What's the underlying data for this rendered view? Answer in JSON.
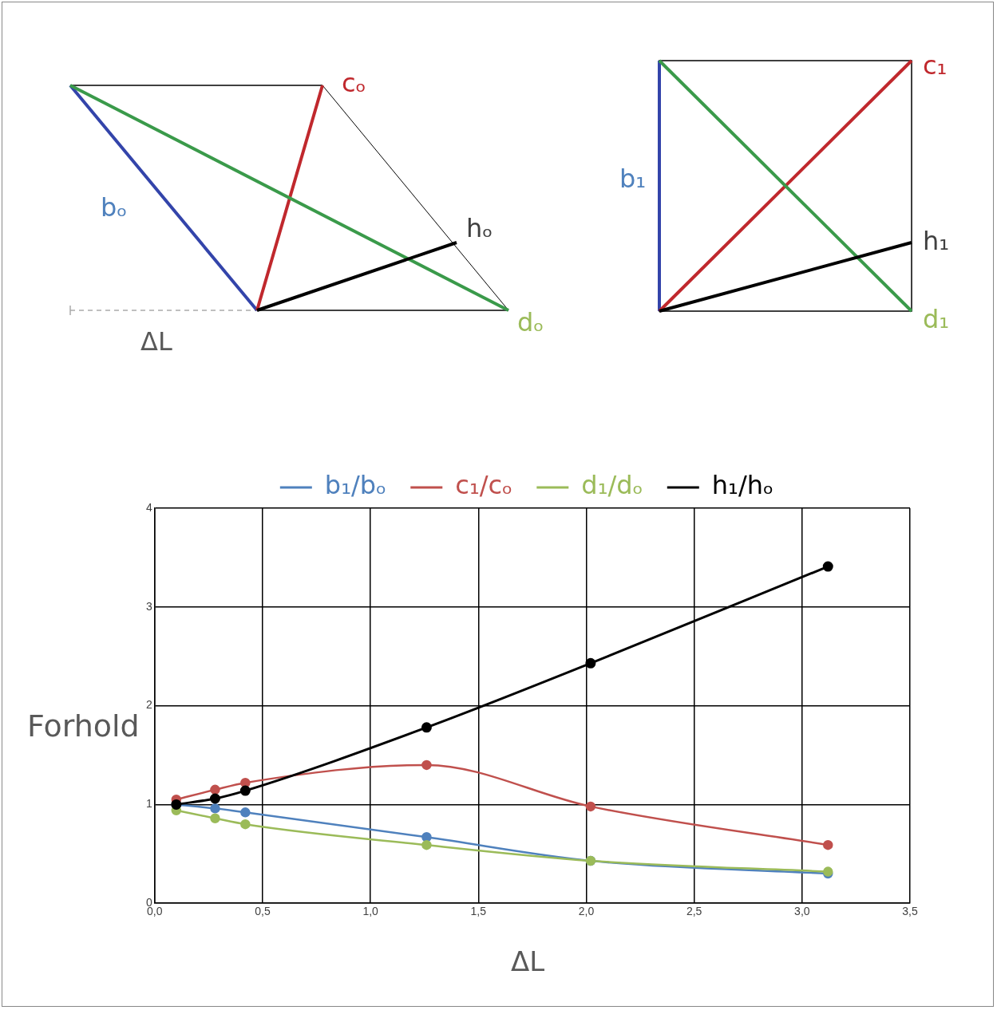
{
  "chart_data": {
    "type": "line",
    "xlabel": "ΔL",
    "ylabel": "Forhold",
    "x": [
      0.1,
      0.28,
      0.42,
      1.26,
      2.02,
      3.12
    ],
    "series": [
      {
        "name": "b₁/bₒ",
        "color": "#4f81bd",
        "values": [
          1.0,
          0.96,
          0.92,
          0.67,
          0.43,
          0.3
        ]
      },
      {
        "name": "c₁/cₒ",
        "color": "#c0504d",
        "values": [
          1.05,
          1.15,
          1.22,
          1.4,
          0.98,
          0.59
        ]
      },
      {
        "name": "d₁/dₒ",
        "color": "#9bbb59",
        "values": [
          0.94,
          0.86,
          0.8,
          0.59,
          0.43,
          0.32
        ]
      },
      {
        "name": "h₁/hₒ",
        "color": "#000000",
        "values": [
          1.0,
          1.06,
          1.14,
          1.78,
          2.43,
          3.41
        ]
      }
    ],
    "xlim": [
      0,
      3.5
    ],
    "xticks": [
      {
        "value": 0,
        "label": "0,0"
      },
      {
        "value": 0.5,
        "label": "0,5"
      },
      {
        "value": 1,
        "label": "1,0"
      },
      {
        "value": 1.5,
        "label": "1,5"
      },
      {
        "value": 2,
        "label": "2,0"
      },
      {
        "value": 2.5,
        "label": "2,5"
      },
      {
        "value": 3,
        "label": "3,0"
      },
      {
        "value": 3.5,
        "label": "3,5"
      }
    ],
    "ylim": [
      0,
      4
    ],
    "yticks": [
      0,
      1,
      2,
      3,
      4
    ],
    "grid": true,
    "legend": "top",
    "marker": "circle",
    "line_style": "solid",
    "annotations": [
      "cₒ",
      "bₒ",
      "hₒ",
      "dₒ",
      "ΔL",
      "c₁",
      "b₁",
      "h₁",
      "d₁"
    ]
  }
}
